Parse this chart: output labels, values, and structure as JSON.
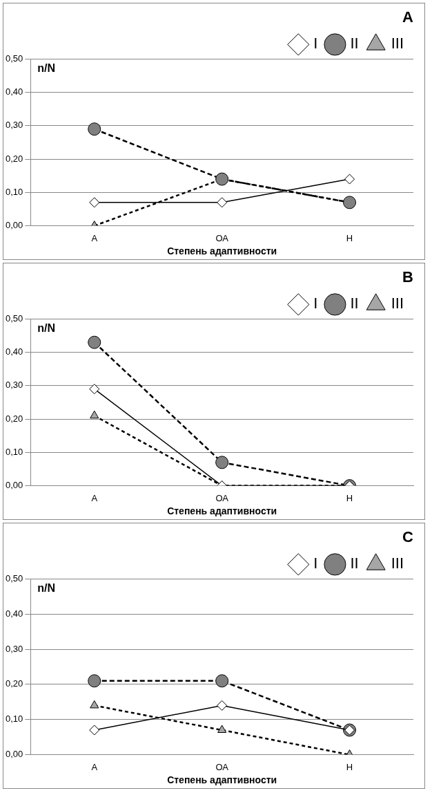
{
  "chart_data": [
    {
      "type": "line",
      "title": "A",
      "ylabel": "n/N",
      "xlabel": "Степень адаптивности",
      "categories": [
        "А",
        "ОА",
        "Н"
      ],
      "ylim": [
        0,
        0.5
      ],
      "yticks": [
        {
          "value": 0,
          "label": "0,00"
        },
        {
          "value": 0.1,
          "label": "0,10"
        },
        {
          "value": 0.2,
          "label": "0,20"
        },
        {
          "value": 0.3,
          "label": "0,30"
        },
        {
          "value": 0.4,
          "label": "0,40"
        },
        {
          "value": 0.5,
          "label": "0,50"
        }
      ],
      "grid": "y",
      "legend": "top right",
      "series": [
        {
          "name": "I",
          "color": "#ffffff",
          "marker": "diamond",
          "line_style": "solid",
          "values": [
            0.07,
            0.07,
            0.14
          ]
        },
        {
          "name": "II",
          "color": "#808080",
          "marker": "circle",
          "line_style": "dashed",
          "values": [
            0.29,
            0.14,
            0.07
          ]
        },
        {
          "name": "III",
          "color": "#a6a6a6",
          "marker": "triangle",
          "line_style": "dashed",
          "values": [
            0,
            0.14,
            0.07
          ]
        }
      ]
    },
    {
      "type": "line",
      "title": "B",
      "ylabel": "n/N",
      "xlabel": "Степень адаптивности",
      "categories": [
        "А",
        "ОА",
        "Н"
      ],
      "ylim": [
        0,
        0.5
      ],
      "yticks": [
        {
          "value": 0,
          "label": "0,00"
        },
        {
          "value": 0.1,
          "label": "0,10"
        },
        {
          "value": 0.2,
          "label": "0,20"
        },
        {
          "value": 0.3,
          "label": "0,30"
        },
        {
          "value": 0.4,
          "label": "0,40"
        },
        {
          "value": 0.5,
          "label": "0,50"
        }
      ],
      "grid": "y",
      "legend": "top right",
      "series": [
        {
          "name": "I",
          "color": "#ffffff",
          "marker": "diamond",
          "line_style": "solid",
          "values": [
            0.29,
            0,
            0
          ]
        },
        {
          "name": "II",
          "color": "#808080",
          "marker": "circle",
          "line_style": "dashed",
          "values": [
            0.43,
            0.07,
            0
          ]
        },
        {
          "name": "III",
          "color": "#a6a6a6",
          "marker": "triangle",
          "line_style": "dashed",
          "values": [
            0.21,
            0,
            0
          ]
        }
      ]
    },
    {
      "type": "line",
      "title": "C",
      "ylabel": "n/N",
      "xlabel": "Степень адаптивности",
      "categories": [
        "А",
        "ОА",
        "Н"
      ],
      "ylim": [
        0,
        0.5
      ],
      "yticks": [
        {
          "value": 0,
          "label": "0,00"
        },
        {
          "value": 0.1,
          "label": "0,10"
        },
        {
          "value": 0.2,
          "label": "0,20"
        },
        {
          "value": 0.3,
          "label": "0,30"
        },
        {
          "value": 0.4,
          "label": "0,40"
        },
        {
          "value": 0.5,
          "label": "0,50"
        }
      ],
      "grid": "y",
      "legend": "top right",
      "series": [
        {
          "name": "I",
          "color": "#ffffff",
          "marker": "diamond",
          "line_style": "solid",
          "values": [
            0.07,
            0.14,
            0.07
          ]
        },
        {
          "name": "II",
          "color": "#808080",
          "marker": "circle",
          "line_style": "dashed",
          "values": [
            0.21,
            0.21,
            0.07
          ]
        },
        {
          "name": "III",
          "color": "#a6a6a6",
          "marker": "triangle",
          "line_style": "dashed",
          "values": [
            0.14,
            0.07,
            0
          ]
        }
      ]
    }
  ]
}
